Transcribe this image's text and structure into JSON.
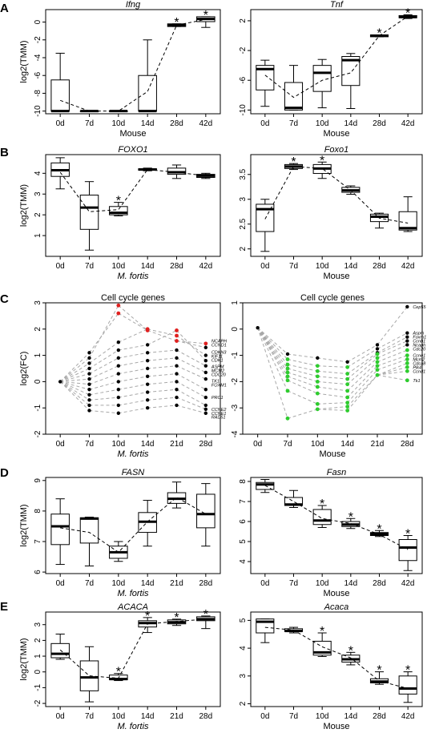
{
  "colors": {
    "red": "#e0201f",
    "green": "#2ecc2e",
    "black": "#000000",
    "gray": "#a8a8a8"
  },
  "panel_letters": [
    "A",
    "B",
    "C",
    "D",
    "E"
  ],
  "chart_data": [
    {
      "id": "A-left",
      "type": "box",
      "title": "Ifng",
      "title_italic": true,
      "ylabel": "log2(TMM)",
      "xlabel": "Mouse",
      "xlabel_italic": false,
      "ylim": [
        -10.3,
        1.4
      ],
      "yticks": [
        -10,
        -8,
        -6,
        -4,
        -2,
        0
      ],
      "categories": [
        "0d",
        "7d",
        "10d",
        "14d",
        "28d",
        "42d"
      ],
      "boxes": [
        {
          "q1": -10,
          "med": -10,
          "q3": -6.5,
          "wlo": -10,
          "whi": -3.5
        },
        {
          "q1": -10,
          "med": -10,
          "q3": -10,
          "wlo": -10,
          "whi": -10
        },
        {
          "q1": -10,
          "med": -10,
          "q3": -10,
          "wlo": -10,
          "whi": -10
        },
        {
          "q1": -10,
          "med": -10,
          "q3": -6,
          "wlo": -10,
          "whi": -2
        },
        {
          "q1": -0.5,
          "med": -0.35,
          "q3": -0.2,
          "wlo": -0.5,
          "whi": -0.2
        },
        {
          "q1": 0.05,
          "med": 0.35,
          "q3": 0.6,
          "wlo": -0.6,
          "whi": 0.6
        }
      ],
      "means": [
        -8.8,
        -10,
        -10,
        -7.8,
        -0.35,
        0.3
      ],
      "stars": [
        4,
        5
      ]
    },
    {
      "id": "A-right",
      "type": "box",
      "title": "Tnf",
      "title_italic": true,
      "ylabel": "",
      "xlabel": "Mouse",
      "xlabel_italic": false,
      "ylim": [
        -10.5,
        3.5
      ],
      "yticks": [
        -10,
        -6,
        -2,
        2
      ],
      "categories": [
        "0d",
        "7d",
        "10d",
        "14d",
        "28d",
        "42d"
      ],
      "boxes": [
        {
          "q1": -7.3,
          "med": -4.5,
          "q3": -4,
          "wlo": -9.5,
          "whi": -3.3
        },
        {
          "q1": -10,
          "med": -9.7,
          "q3": -6.3,
          "wlo": -10,
          "whi": -4
        },
        {
          "q1": -7.5,
          "med": -5,
          "q3": -4,
          "wlo": -9.7,
          "whi": -3.2
        },
        {
          "q1": -6.7,
          "med": -3.3,
          "q3": -2.8,
          "wlo": -9.8,
          "whi": -2.4
        },
        {
          "q1": -0.15,
          "med": 0,
          "q3": 0.1,
          "wlo": -0.15,
          "whi": 0.1
        },
        {
          "q1": 2.4,
          "med": 2.5,
          "q3": 2.7,
          "wlo": 2.3,
          "whi": 2.8
        }
      ],
      "means": [
        -5.3,
        -8.3,
        -6,
        -5,
        0,
        2.6
      ],
      "stars": [
        4,
        5
      ]
    },
    {
      "id": "B-left",
      "type": "box",
      "title": "FOXO1",
      "title_italic": true,
      "ylabel": "log2(TMM)",
      "xlabel": "M. fortis",
      "xlabel_italic": true,
      "ylim": [
        0.0,
        4.9
      ],
      "yticks": [
        1,
        2,
        3,
        4
      ],
      "categories": [
        "0d",
        "7d",
        "10d",
        "14d",
        "28d",
        "42d"
      ],
      "boxes": [
        {
          "q1": 3.85,
          "med": 4.15,
          "q3": 4.5,
          "wlo": 3.25,
          "whi": 4.75
        },
        {
          "q1": 1.3,
          "med": 2.35,
          "q3": 2.95,
          "wlo": 0.3,
          "whi": 3.6
        },
        {
          "q1": 2.0,
          "med": 2.1,
          "q3": 2.4,
          "wlo": 1.95,
          "whi": 2.6
        },
        {
          "q1": 4.15,
          "med": 4.18,
          "q3": 4.22,
          "wlo": 4.12,
          "whi": 4.25
        },
        {
          "q1": 3.95,
          "med": 4.05,
          "q3": 4.25,
          "wlo": 3.75,
          "whi": 4.4
        },
        {
          "q1": 3.8,
          "med": 3.88,
          "q3": 3.95,
          "wlo": 3.75,
          "whi": 4.0
        }
      ],
      "means": [
        4.05,
        2.15,
        2.25,
        4.18,
        4.05,
        3.88
      ],
      "stars": [
        2
      ]
    },
    {
      "id": "B-right",
      "type": "box",
      "title": "Foxo1",
      "title_italic": true,
      "ylabel": "",
      "xlabel": "Mouse",
      "xlabel_italic": false,
      "ylim": [
        1.85,
        3.9
      ],
      "yticks": [
        2.0,
        2.5,
        3.0,
        3.5
      ],
      "categories": [
        "0d",
        "7d",
        "10d",
        "14d",
        "28d",
        "42d"
      ],
      "boxes": [
        {
          "q1": 2.35,
          "med": 2.8,
          "q3": 2.9,
          "wlo": 1.95,
          "whi": 3.0
        },
        {
          "q1": 3.62,
          "med": 3.66,
          "q3": 3.7,
          "wlo": 3.6,
          "whi": 3.72
        },
        {
          "q1": 3.52,
          "med": 3.62,
          "q3": 3.7,
          "wlo": 3.42,
          "whi": 3.75
        },
        {
          "q1": 3.14,
          "med": 3.18,
          "q3": 3.24,
          "wlo": 3.1,
          "whi": 3.27
        },
        {
          "q1": 2.55,
          "med": 2.65,
          "q3": 2.7,
          "wlo": 2.42,
          "whi": 2.72
        },
        {
          "q1": 2.38,
          "med": 2.42,
          "q3": 2.75,
          "wlo": 2.35,
          "whi": 3.05
        }
      ],
      "means": [
        2.6,
        3.66,
        3.62,
        3.18,
        2.62,
        2.52
      ],
      "stars": [
        1,
        2
      ]
    },
    {
      "id": "C-left",
      "type": "scatter",
      "title": "Cell cycle genes",
      "title_italic": false,
      "ylabel": "log2(FC)",
      "xlabel": "M. fortis",
      "xlabel_italic": true,
      "ylim": [
        -2,
        3
      ],
      "yticks": [
        -2,
        -1,
        0,
        1,
        2,
        3
      ],
      "categories": [
        "0d",
        "7d",
        "10d",
        "14d",
        "21d",
        "28d"
      ],
      "columns": [
        {
          "black": [
            0
          ],
          "red": []
        },
        {
          "black": [
            -1.1,
            -0.9,
            -0.7,
            -0.5,
            -0.3,
            -0.1,
            0.1,
            0.3,
            0.5,
            0.7,
            0.9,
            1.1
          ],
          "red": []
        },
        {
          "black": [
            -1.2,
            -0.9,
            -0.6,
            -0.3,
            0.0,
            0.3,
            0.6,
            0.9,
            1.2,
            1.5
          ],
          "red": [
            2.9,
            2.6
          ]
        },
        {
          "black": [
            -1.0,
            -0.7,
            -0.4,
            -0.1,
            0.2,
            0.5,
            0.8,
            1.1,
            1.4
          ],
          "red": [
            2.0,
            1.95
          ]
        },
        {
          "black": [
            -0.9,
            -0.6,
            -0.3,
            0.0,
            0.3,
            0.6,
            0.9,
            1.2
          ],
          "red": [
            1.95,
            1.75,
            1.55
          ]
        },
        {
          "black": [
            -1.2,
            -1.05,
            -0.9,
            -0.6,
            -0.3,
            0.1,
            0.35,
            0.6,
            0.8,
            1.0,
            1.3
          ],
          "red": [
            1.45
          ]
        }
      ],
      "genes": [
        "NCAPH",
        "CCND1",
        "CDKN3",
        "KIF11",
        "CDK1",
        "ASPM",
        "MCM2",
        "CDC20",
        "TK1",
        "FOXM1",
        "PRC1",
        "CCNE2",
        "CCNE1",
        "RAD51"
      ],
      "gene_y": [
        1.55,
        1.4,
        1.12,
        0.97,
        0.82,
        0.57,
        0.42,
        0.27,
        0.02,
        -0.13,
        -0.6,
        -1.05,
        -1.2,
        -1.35
      ]
    },
    {
      "id": "C-right",
      "type": "scatter",
      "title": "Cell cycle genes",
      "title_italic": false,
      "ylabel": "",
      "xlabel": "Mouse",
      "xlabel_italic": false,
      "ylim": [
        -4,
        1
      ],
      "yticks": [
        -4,
        -3,
        -2,
        -1,
        0,
        1
      ],
      "categories": [
        "0d",
        "7d",
        "10d",
        "14d",
        "21d",
        "28d"
      ],
      "columns": [
        {
          "black": [
            0.05
          ],
          "green": []
        },
        {
          "black": [
            -0.95
          ],
          "green": [
            -1.15,
            -1.35,
            -1.5,
            -1.65,
            -1.8,
            -1.95,
            -2.35,
            -3.4
          ]
        },
        {
          "black": [
            -1.1
          ],
          "green": [
            -1.4,
            -1.6,
            -1.8,
            -2.0,
            -2.2,
            -2.45,
            -2.85,
            -3.05
          ]
        },
        {
          "black": [
            -1.25
          ],
          "green": [
            -1.45,
            -1.7,
            -1.9,
            -2.1,
            -2.35,
            -2.6,
            -2.8,
            -2.95,
            -3.1
          ]
        },
        {
          "black": [
            -0.6,
            -0.75,
            -0.9
          ],
          "green": [
            -0.95,
            -1.1,
            -1.25,
            -1.4,
            -1.55,
            -1.75
          ]
        },
        {
          "black": [
            0.85,
            -0.15,
            -0.3,
            -0.45,
            -0.6
          ],
          "green": [
            -0.8,
            -1.0,
            -1.15,
            -1.3,
            -1.45,
            -1.6,
            -1.95
          ]
        }
      ],
      "genes": [
        "Cep55",
        "Aspm",
        "Foxm1",
        "Ccnb1",
        "Ncaph",
        "Cdc20",
        "Ccne1",
        "Mcm2",
        "Cdca8",
        "Plk4",
        "Ccnd1",
        "Tk1",
        "Prc1",
        "Cdk1",
        "Rad51"
      ],
      "gene_y": [
        0.85,
        -0.15,
        -0.3,
        -0.45,
        -0.6,
        -0.75,
        -1.0,
        -1.15,
        -1.3,
        -1.45,
        -1.6,
        -1.95,
        -0.3,
        -1.05,
        -1.55
      ]
    },
    {
      "id": "D-left",
      "type": "box",
      "title": "FASN",
      "title_italic": true,
      "ylabel": "log2(TMM)",
      "xlabel": "M. fortis",
      "xlabel_italic": true,
      "ylim": [
        5.95,
        9.1
      ],
      "yticks": [
        6.0,
        7.0,
        8.0,
        9.0
      ],
      "categories": [
        "0d",
        "7d",
        "10d",
        "14d",
        "21d",
        "28d"
      ],
      "boxes": [
        {
          "q1": 6.9,
          "med": 7.5,
          "q3": 7.9,
          "wlo": 6.25,
          "whi": 8.4
        },
        {
          "q1": 6.95,
          "med": 7.75,
          "q3": 7.78,
          "wlo": 6.2,
          "whi": 7.8
        },
        {
          "q1": 6.45,
          "med": 6.65,
          "q3": 6.85,
          "wlo": 6.35,
          "whi": 7.0
        },
        {
          "q1": 7.3,
          "med": 7.65,
          "q3": 7.95,
          "wlo": 6.85,
          "whi": 8.35
        },
        {
          "q1": 8.25,
          "med": 8.4,
          "q3": 8.6,
          "wlo": 8.1,
          "whi": 8.95
        },
        {
          "q1": 7.45,
          "med": 7.9,
          "q3": 8.55,
          "wlo": 6.85,
          "whi": 8.9
        }
      ],
      "means": [
        7.45,
        7.3,
        6.65,
        7.65,
        8.45,
        7.9
      ],
      "stars": []
    },
    {
      "id": "D-right",
      "type": "box",
      "title": "Fasn",
      "title_italic": true,
      "ylabel": "",
      "xlabel": "Mouse",
      "xlabel_italic": false,
      "ylim": [
        3.4,
        8.2
      ],
      "yticks": [
        4,
        5,
        6,
        7,
        8
      ],
      "categories": [
        "0d",
        "7d",
        "10d",
        "14d",
        "28d",
        "42d"
      ],
      "boxes": [
        {
          "q1": 7.6,
          "med": 7.85,
          "q3": 7.95,
          "wlo": 7.45,
          "whi": 8.1
        },
        {
          "q1": 6.8,
          "med": 6.85,
          "q3": 7.2,
          "wlo": 6.7,
          "whi": 7.55
        },
        {
          "q1": 5.85,
          "med": 6.05,
          "q3": 6.6,
          "wlo": 5.7,
          "whi": 6.8
        },
        {
          "q1": 5.75,
          "med": 5.85,
          "q3": 6.0,
          "wlo": 5.65,
          "whi": 6.15
        },
        {
          "q1": 5.3,
          "med": 5.38,
          "q3": 5.45,
          "wlo": 5.25,
          "whi": 5.55
        },
        {
          "q1": 4.05,
          "med": 4.7,
          "q3": 5.1,
          "wlo": 3.55,
          "whi": 5.3
        }
      ],
      "means": [
        7.8,
        7.0,
        6.15,
        5.9,
        5.35,
        4.6
      ],
      "stars": [
        2,
        3,
        4,
        5
      ]
    },
    {
      "id": "E-left",
      "type": "box",
      "title": "ACACA",
      "title_italic": true,
      "ylabel": "log2(TMM)",
      "xlabel": "M. fortis",
      "xlabel_italic": true,
      "ylim": [
        -2.2,
        3.8
      ],
      "yticks": [
        -2,
        -1,
        0,
        1,
        2,
        3
      ],
      "categories": [
        "0d",
        "7d",
        "10d",
        "14d",
        "21d",
        "28d"
      ],
      "boxes": [
        {
          "q1": 0.9,
          "med": 1.15,
          "q3": 1.8,
          "wlo": 0.8,
          "whi": 2.4
        },
        {
          "q1": -1.2,
          "med": -0.35,
          "q3": 0.7,
          "wlo": -1.9,
          "whi": 1.6
        },
        {
          "q1": -0.5,
          "med": -0.45,
          "q3": -0.2,
          "wlo": -0.55,
          "whi": -0.1
        },
        {
          "q1": 2.85,
          "med": 3.1,
          "q3": 3.25,
          "wlo": 2.5,
          "whi": 3.45
        },
        {
          "q1": 3.05,
          "med": 3.15,
          "q3": 3.3,
          "wlo": 2.95,
          "whi": 3.35
        },
        {
          "q1": 3.25,
          "med": 3.35,
          "q3": 3.5,
          "wlo": 2.75,
          "whi": 3.55
        }
      ],
      "means": [
        1.4,
        -0.25,
        -0.4,
        3.05,
        3.2,
        3.35
      ],
      "stars": [
        2,
        3,
        4,
        5
      ]
    },
    {
      "id": "E-right",
      "type": "box",
      "title": "Acaca",
      "title_italic": true,
      "ylabel": "",
      "xlabel": "Mouse",
      "xlabel_italic": false,
      "ylim": [
        1.9,
        5.3
      ],
      "yticks": [
        2.0,
        3.0,
        4.0,
        5.0
      ],
      "categories": [
        "0d",
        "7d",
        "10d",
        "14d",
        "28d",
        "42d"
      ],
      "boxes": [
        {
          "q1": 4.55,
          "med": 4.95,
          "q3": 5.05,
          "wlo": 4.2,
          "whi": 5.05
        },
        {
          "q1": 4.6,
          "med": 4.62,
          "q3": 4.7,
          "wlo": 4.55,
          "whi": 4.75
        },
        {
          "q1": 3.75,
          "med": 3.85,
          "q3": 4.25,
          "wlo": 3.7,
          "whi": 4.55
        },
        {
          "q1": 3.5,
          "med": 3.6,
          "q3": 3.75,
          "wlo": 3.4,
          "whi": 3.85
        },
        {
          "q1": 2.75,
          "med": 2.8,
          "q3": 2.9,
          "wlo": 2.7,
          "whi": 3.15
        },
        {
          "q1": 2.35,
          "med": 2.55,
          "q3": 3.0,
          "wlo": 2.05,
          "whi": 3.15
        }
      ],
      "means": [
        4.75,
        4.65,
        4.05,
        3.65,
        2.82,
        2.55
      ],
      "stars": [
        2,
        3,
        4,
        5
      ]
    }
  ]
}
